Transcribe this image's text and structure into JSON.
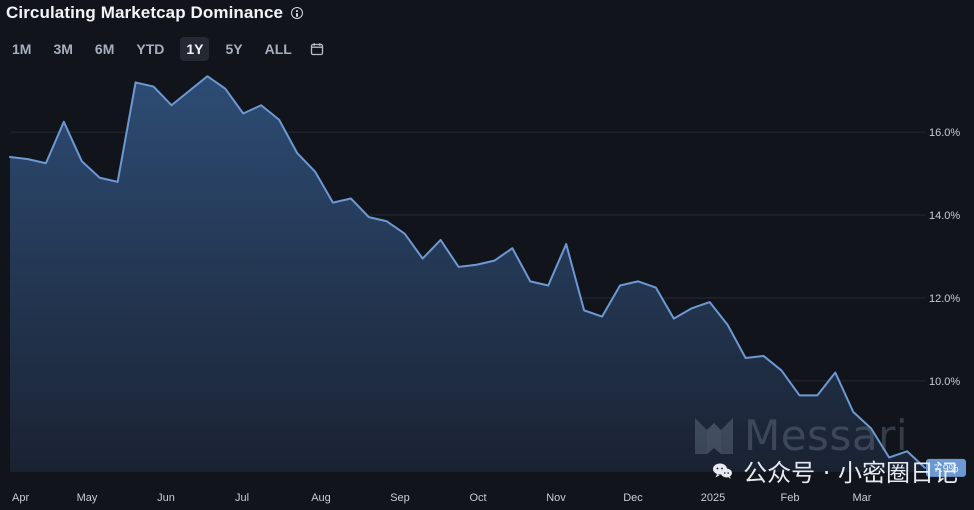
{
  "title": "Circulating Marketcap Dominance",
  "range_buttons": [
    "1M",
    "3M",
    "6M",
    "YTD",
    "1Y",
    "5Y",
    "ALL"
  ],
  "selected_range": "1Y",
  "watermark": {
    "brand": "Messari",
    "wechat": "公众号 · 小密圈日记"
  },
  "chart_data": {
    "type": "area",
    "title": "Circulating Marketcap Dominance",
    "x_axis_labels": [
      "Apr",
      "May",
      "Jun",
      "Jul",
      "Aug",
      "Sep",
      "Oct",
      "Nov",
      "Dec",
      "2025",
      "Feb",
      "Mar"
    ],
    "y_axis_labels": [
      "16.0%",
      "14.0%",
      "12.0%",
      "10.0%"
    ],
    "ylim": [
      7.8,
      17.5
    ],
    "grid": true,
    "x_index": [
      0,
      1,
      2,
      3,
      4,
      5,
      6,
      7,
      8,
      9,
      10,
      11,
      12,
      13,
      14,
      15,
      16,
      17,
      18,
      19,
      20,
      21,
      22,
      23,
      24,
      25,
      26,
      27,
      28,
      29,
      30,
      31,
      32,
      33,
      34,
      35,
      36,
      37,
      38,
      39,
      40,
      41,
      42,
      43,
      44,
      45,
      46,
      47,
      48,
      49,
      50,
      51
    ],
    "values": [
      15.4,
      15.35,
      15.25,
      16.25,
      15.3,
      14.9,
      14.8,
      17.2,
      17.1,
      16.65,
      17.0,
      17.35,
      17.05,
      16.45,
      16.65,
      16.3,
      15.5,
      15.05,
      14.3,
      14.4,
      13.95,
      13.85,
      13.55,
      12.95,
      13.4,
      12.75,
      12.8,
      12.9,
      13.2,
      12.4,
      12.3,
      13.3,
      11.7,
      11.55,
      12.3,
      12.4,
      12.25,
      11.5,
      11.75,
      11.9,
      11.35,
      10.55,
      10.6,
      10.25,
      9.65,
      9.65,
      10.2,
      9.25,
      8.85,
      8.15,
      8.3,
      7.9
    ],
    "last_value_label": "7.9%"
  },
  "colors": {
    "background": "#11141b",
    "line": "#6c99d4",
    "area_top": "#2d4c74",
    "area_bottom": "#1a2232",
    "grid": "#252a33",
    "axis_text": "#c7ccd5",
    "badge": "#6c99d4"
  },
  "icons": {
    "info": "info-icon",
    "calendar": "calendar-icon",
    "brand": "messari-logo",
    "wechat": "wechat-icon"
  }
}
